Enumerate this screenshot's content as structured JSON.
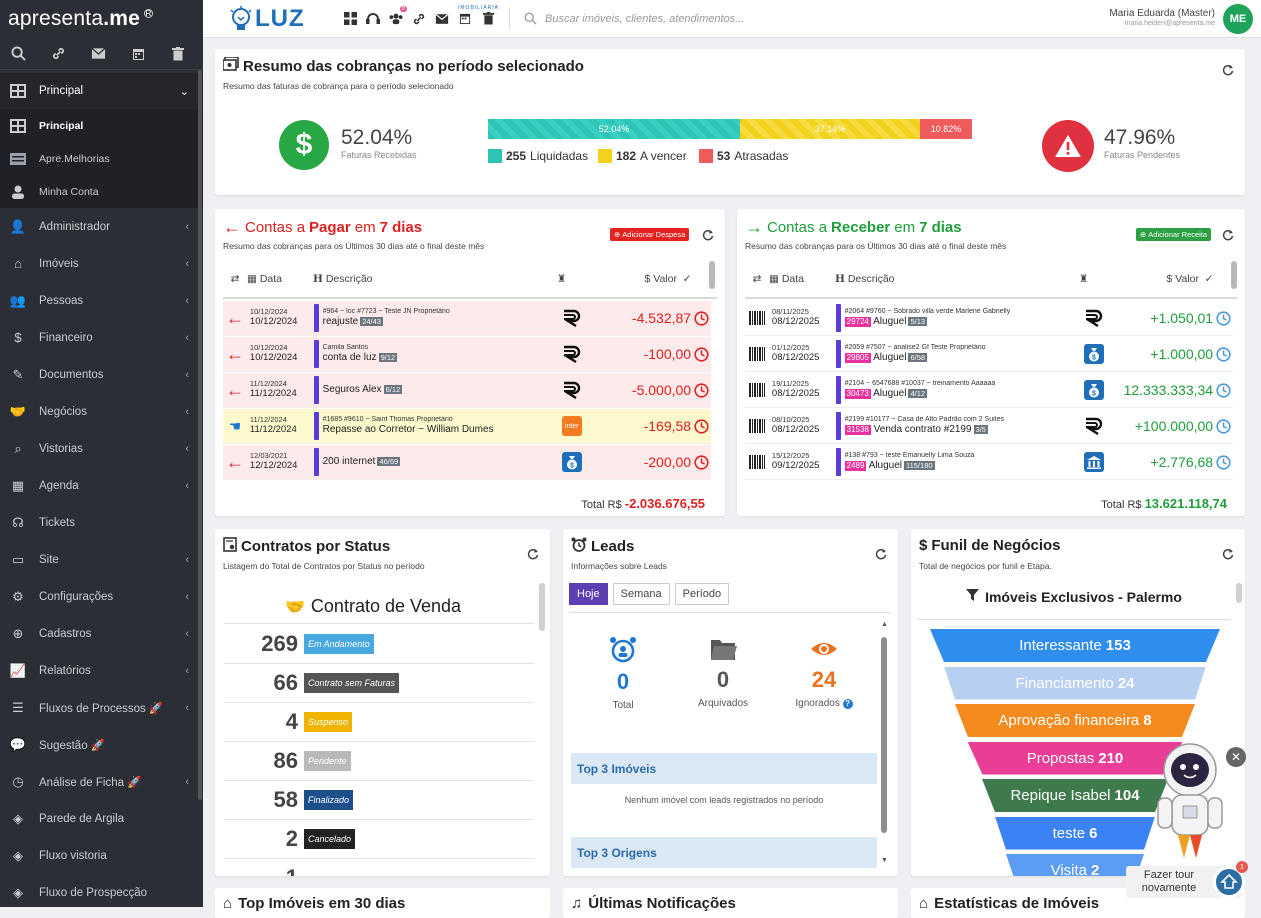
{
  "brand": {
    "logo_light": "apresenta",
    "logo_dot": ".me",
    "reg": "R"
  },
  "sidebar": {
    "group": {
      "label": "Principal"
    },
    "sub_items": [
      {
        "label": "Principal",
        "icon": "dashboard-icon"
      },
      {
        "label": "Apre.Melhorias",
        "icon": "list-icon"
      },
      {
        "label": "Minha Conta",
        "icon": "user-icon"
      }
    ],
    "items": [
      {
        "label": "Administrador",
        "icon": "user-tie-icon",
        "caret": true
      },
      {
        "label": "Imóveis",
        "icon": "home-icon",
        "caret": true
      },
      {
        "label": "Pessoas",
        "icon": "people-icon",
        "caret": true
      },
      {
        "label": "Financeiro",
        "icon": "dollar-icon",
        "caret": true
      },
      {
        "label": "Documentos",
        "icon": "document-icon",
        "caret": true
      },
      {
        "label": "Negócios",
        "icon": "handshake-icon",
        "caret": true
      },
      {
        "label": "Vistorias",
        "icon": "home-search-icon",
        "caret": true
      },
      {
        "label": "Agenda",
        "icon": "calendar-icon",
        "caret": true
      },
      {
        "label": "Tickets",
        "icon": "headset-icon",
        "caret": false
      },
      {
        "label": "Site",
        "icon": "browser-icon",
        "caret": true
      },
      {
        "label": "Configurações",
        "icon": "gears-icon",
        "caret": true
      },
      {
        "label": "Cadastros",
        "icon": "plus-circle-icon",
        "caret": true
      },
      {
        "label": "Relatórios",
        "icon": "chart-icon",
        "caret": true
      },
      {
        "label": "Fluxos de Processos 🚀",
        "icon": "flow-icon",
        "caret": true
      },
      {
        "label": "Sugestão 🚀",
        "icon": "comments-icon",
        "caret": false
      },
      {
        "label": "Análise de Ficha 🚀",
        "icon": "clock-search-icon",
        "caret": true
      },
      {
        "label": "Parede de Argila",
        "icon": "layers-icon",
        "caret": false
      },
      {
        "label": "Fluxo vistoria",
        "icon": "layers-icon",
        "caret": false
      },
      {
        "label": "Fluxo de Prospecção",
        "icon": "layers-icon",
        "caret": false
      }
    ]
  },
  "topbar": {
    "company_small": "IMOBILIÁRIA",
    "company": "LUZ",
    "search_placeholder": "Buscar imóveis, clientes, atendimentos...",
    "user_name": "Maria Eduarda (Master)",
    "user_email": "maria.heideri@apresenta.me",
    "avatar": "ME"
  },
  "resumo": {
    "title": "Resumo das cobranças no período selecionado",
    "subtitle": "Resumo das faturas de cobrança para o período selecionado",
    "received_pct": "52.04%",
    "received_label": "Faturas Recebidas",
    "pending_pct": "47.96%",
    "pending_label": "Faturas Pendentes",
    "segments": [
      {
        "label": "52.04%",
        "value": 52.04,
        "color": "#2ec4b6"
      },
      {
        "label": "37.14%",
        "value": 37.14,
        "color": "#f2d21d"
      },
      {
        "label": "10.82%",
        "value": 10.82,
        "color": "#ef5a5a"
      }
    ],
    "legend": [
      {
        "count": "255",
        "label": "Liquidadas",
        "color": "#2ec4b6"
      },
      {
        "count": "182",
        "label": "A vencer",
        "color": "#f2d21d"
      },
      {
        "count": "53",
        "label": "Atrasadas",
        "color": "#ef5a5a"
      }
    ]
  },
  "pagar": {
    "t1": "Contas a ",
    "t2": "Pagar",
    "t3": " em ",
    "t4": "7 dias",
    "subtitle": "Resumo das cobranças para os Últimos 30 dias até o final deste mês",
    "button": "Adicionar Despesa",
    "col_data": "Data",
    "col_desc": "Descrição",
    "col_valor": "Valor",
    "rows": [
      {
        "d1": "10/12/2024",
        "d2": "10/12/2024",
        "top": "#964 ~ loc  #7723 ~ Teste JN  Proprietário",
        "main": "reajuste",
        "chip": "24/43",
        "amount": "-4.532,87",
        "yellow": false,
        "bank": "R"
      },
      {
        "d1": "10/12/2024",
        "d2": "10/12/2024",
        "top": "Camila Santos",
        "main": "conta de luz",
        "chip": "9/12",
        "amount": "-100,00",
        "yellow": false,
        "bank": "R"
      },
      {
        "d1": "11/12/2024",
        "d2": "11/12/2024",
        "top": "",
        "main": "Seguros Alex",
        "chip": "6/12",
        "amount": "-5.000,00",
        "yellow": false,
        "bank": "R"
      },
      {
        "d1": "11/12/2024",
        "d2": "11/12/2024",
        "top": "#1685  #9610 ~ Saint Thomas  Proprietário",
        "main": "Repasse ao Corretor ~ William Dumes",
        "chip": "",
        "amount": "-169,58",
        "yellow": true,
        "bank": "inter"
      },
      {
        "d1": "12/03/2021",
        "d2": "12/12/2024",
        "top": "",
        "main": "200 internet",
        "chip": "46/69",
        "amount": "-200,00",
        "yellow": false,
        "bank": "$"
      }
    ],
    "total_label": "Total R$ ",
    "total": "-2.036.676,55"
  },
  "receber": {
    "t1": "Contas a ",
    "t2": "Receber",
    "t3": " em ",
    "t4": "7 dias",
    "subtitle": "Resumo das cobranças para os Últimos 30 dias até o final deste mês",
    "button": "Adicionar Receita",
    "col_data": "Data",
    "col_desc": "Descrição",
    "col_valor": "Valor",
    "rows": [
      {
        "d1": "08/11/2025",
        "d2": "08/12/2025",
        "top": "#2064  #9760 ~ Sobrado villa verde  Marlene Gabrielly",
        "tag": "29724",
        "main": "Aluguel",
        "chip": "5/13",
        "amount": "+1.050,01",
        "bank": "R"
      },
      {
        "d1": "01/12/2025",
        "d2": "08/12/2025",
        "top": "#2059  #7507 ~ analise2  Gf Teste  Proprietário",
        "tag": "29805",
        "main": "Aluguel",
        "chip": "6/58",
        "amount": "+1.000,00",
        "bank": "$"
      },
      {
        "d1": "19/11/2025",
        "d2": "08/12/2025",
        "top": "#2104 ~ 6547688  #10037 ~ treinamento  Aaaaaa",
        "tag": "30473",
        "main": "Aluguel",
        "chip": "4/12",
        "amount": "12.333.333,34",
        "bank": "$"
      },
      {
        "d1": "08/10/2025",
        "d2": "08/12/2025",
        "top": "#2199  #10177 ~ Casa de Alto Padrão com 2 Suites",
        "tag": "31538",
        "main": "Venda contrato #2199",
        "chip": "3/5",
        "amount": "+100.000,00",
        "bank": "R"
      },
      {
        "d1": "15/12/2025",
        "d2": "09/12/2025",
        "top": "#138  #793 ~ teste  Emanuelly Lima Souza",
        "tag": "2489",
        "main": "Aluguel",
        "chip": "115/180",
        "amount": "+2.776,68",
        "bank": "bank"
      }
    ],
    "total_label": "Total R$ ",
    "total": "13.621.118,74"
  },
  "contratos": {
    "title": "Contratos por Status",
    "subtitle": "Listagem do Total de Contratos por Status no período",
    "heading": "Contrato de Venda",
    "rows": [
      {
        "n": "269",
        "label": "Em Andamento",
        "color": "#4aa8e0"
      },
      {
        "n": "66",
        "label": "Contrato sem Faturas",
        "color": "#555555"
      },
      {
        "n": "4",
        "label": "Suspenso",
        "color": "#f0b400"
      },
      {
        "n": "86",
        "label": "Pendente",
        "color": "#b9b9b9"
      },
      {
        "n": "58",
        "label": "Finalizado",
        "color": "#1d4f8a"
      },
      {
        "n": "2",
        "label": "Cancelado",
        "color": "#222222"
      },
      {
        "n": "1",
        "label": "",
        "color": "#f0b400"
      }
    ]
  },
  "leads": {
    "title": "Leads",
    "subtitle": "Informações sobre Leads",
    "tabs": [
      "Hoje",
      "Semana",
      "Período"
    ],
    "stats": [
      {
        "n": "0",
        "label": "Total",
        "color": "#1f78d1"
      },
      {
        "n": "0",
        "label": "Arquivados",
        "color": "#555555"
      },
      {
        "n": "24",
        "label": "Ignorados",
        "color": "#e8731e"
      }
    ],
    "top_imoveis": "Top 3 Imóveis",
    "empty": "Nenhum imóvel com leads registrados no período",
    "top_origens": "Top 3 Origens"
  },
  "funil": {
    "title": "Funil de Negócios",
    "subtitle": "Total de negócios por funil e Etapa.",
    "heading": "Imóveis Exclusivos - Palermo",
    "stages": [
      {
        "label": "Interessante",
        "n": "153",
        "color": "#2e8ded"
      },
      {
        "label": "Financiamento",
        "n": "24",
        "color": "#b7cff0"
      },
      {
        "label": "Aprovação financeira",
        "n": "8",
        "color": "#f58b1f"
      },
      {
        "label": "Propostas",
        "n": "210",
        "color": "#ea3d96"
      },
      {
        "label": "Repique Isabel",
        "n": "104",
        "color": "#3e7a4b"
      },
      {
        "label": "teste",
        "n": "6",
        "color": "#3b82f6"
      },
      {
        "label": "Visita",
        "n": "2",
        "color": "#5b9cf5"
      }
    ]
  },
  "bottom": [
    "Top Imóveis em 30 dias",
    "Últimas Notificações",
    "Estatísticas de Imóveis"
  ],
  "tour": {
    "label": "Fazer tour novamente",
    "badge": "1"
  }
}
